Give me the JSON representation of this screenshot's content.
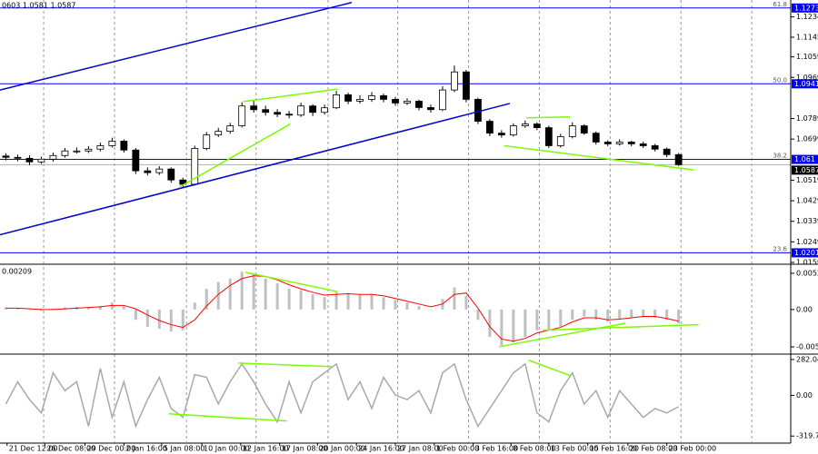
{
  "chart_data": [
    {
      "type": "candlestick",
      "title": "0603 1.0581 1.0587",
      "xlim": [
        0,
        67
      ],
      "ylim": [
        1.0155,
        1.1308
      ],
      "yticks": [
        1.1234,
        1.1145,
        1.1059,
        1.0969,
        1.0789,
        1.0699,
        1.0519,
        1.0429,
        1.0339,
        1.0249,
        1.0159
      ],
      "xticks": [
        {
          "value": 0.6,
          "label": "21 Dec 12:00"
        },
        {
          "value": 3.8,
          "label": "26 Dec 08:00"
        },
        {
          "value": 7.2,
          "label": "29 Dec 00:00"
        },
        {
          "value": 10.5,
          "label": "2 Jan 16:00"
        },
        {
          "value": 13.7,
          "label": "5 Jan 08:00"
        },
        {
          "value": 17.1,
          "label": "10 Jan 00:00"
        },
        {
          "value": 20.4,
          "label": "12 Jan 16:00"
        },
        {
          "value": 23.7,
          "label": "17 Jan 08:00"
        },
        {
          "value": 26.9,
          "label": "20 Jan 00:00"
        },
        {
          "value": 30.2,
          "label": "24 Jan 16:00"
        },
        {
          "value": 33.5,
          "label": "27 Jan 08:00"
        },
        {
          "value": 36.8,
          "label": "1 Feb 00:00"
        },
        {
          "value": 40.1,
          "label": "3 Feb 16:00"
        },
        {
          "value": 43.3,
          "label": "8 Feb 08:00"
        },
        {
          "value": 46.5,
          "label": "13 Feb 00:00"
        },
        {
          "value": 49.8,
          "label": "15 Feb 16:00"
        },
        {
          "value": 53.2,
          "label": "20 Feb 08:00"
        },
        {
          "value": 56.5,
          "label": "23 Feb 00:00"
        }
      ],
      "xgrid": [
        3.7,
        9.7,
        15.8,
        21.7,
        27.8,
        33.7,
        39.7,
        45.7,
        51.7,
        57.7,
        63.7
      ],
      "open": [
        1.0625,
        1.0619,
        1.0615,
        1.0599,
        1.0611,
        1.0627,
        1.0647,
        1.0647,
        1.0655,
        1.067,
        1.069,
        1.0651,
        1.056,
        1.0552,
        1.0568,
        1.052,
        1.0501,
        1.0658,
        1.0717,
        1.0733,
        1.0757,
        1.0844,
        1.0828,
        1.0816,
        1.0808,
        1.0804,
        1.0844,
        1.0816,
        1.0836,
        1.0893,
        1.0865,
        1.0873,
        1.0889,
        1.0873,
        1.0857,
        1.0865,
        1.0837,
        1.0828,
        1.0914,
        1.0993,
        1.0873,
        1.0777,
        1.0725,
        1.0717,
        1.0757,
        1.0765,
        1.0749,
        1.067,
        1.071,
        1.0757,
        1.0725,
        1.0686,
        1.0678,
        1.0686,
        1.0678,
        1.067,
        1.0655,
        1.0631
      ],
      "high": [
        1.0637,
        1.0631,
        1.0628,
        1.0622,
        1.064,
        1.066,
        1.0662,
        1.0668,
        1.0684,
        1.0705,
        1.0698,
        1.066,
        1.0575,
        1.058,
        1.0575,
        1.053,
        1.067,
        1.073,
        1.0748,
        1.077,
        1.086,
        1.0866,
        1.0845,
        1.083,
        1.0822,
        1.0858,
        1.0852,
        1.085,
        1.091,
        1.0902,
        1.089,
        1.0905,
        1.0898,
        1.0884,
        1.0878,
        1.0872,
        1.085,
        1.093,
        1.1021,
        1.1002,
        1.088,
        1.0786,
        1.0738,
        1.0768,
        1.078,
        1.0772,
        1.0758,
        1.0722,
        1.0772,
        1.0764,
        1.0732,
        1.0694,
        1.0698,
        1.0692,
        1.0688,
        1.0678,
        1.0662,
        1.0638
      ],
      "low": [
        1.0606,
        1.0602,
        1.0585,
        1.059,
        1.06,
        1.0618,
        1.0636,
        1.0638,
        1.0645,
        1.0662,
        1.064,
        1.0546,
        1.054,
        1.0542,
        1.0508,
        1.0487,
        1.0495,
        1.065,
        1.0708,
        1.0722,
        1.075,
        1.0815,
        1.0802,
        1.0795,
        1.079,
        1.0796,
        1.08,
        1.0806,
        1.083,
        1.0852,
        1.0855,
        1.0862,
        1.086,
        1.0845,
        1.0848,
        1.0825,
        1.0815,
        1.0822,
        1.0905,
        1.086,
        1.0765,
        1.0712,
        1.0705,
        1.071,
        1.0748,
        1.0738,
        1.066,
        1.0662,
        1.0702,
        1.0718,
        1.0675,
        1.0668,
        1.067,
        1.0668,
        1.066,
        1.0645,
        1.062,
        1.0581
      ],
      "close": [
        1.0619,
        1.0615,
        1.0599,
        1.0611,
        1.0627,
        1.0647,
        1.0647,
        1.0655,
        1.067,
        1.069,
        1.0651,
        1.056,
        1.0552,
        1.0568,
        1.052,
        1.0501,
        1.0658,
        1.0717,
        1.0733,
        1.0757,
        1.0844,
        1.0828,
        1.0816,
        1.0808,
        1.0804,
        1.0844,
        1.0816,
        1.0836,
        1.0893,
        1.0865,
        1.0873,
        1.0889,
        1.0873,
        1.0857,
        1.0865,
        1.0837,
        1.0828,
        1.0914,
        1.0993,
        1.0873,
        1.0777,
        1.0725,
        1.0717,
        1.0757,
        1.0765,
        1.0749,
        1.067,
        1.071,
        1.0757,
        1.0725,
        1.0686,
        1.0678,
        1.0686,
        1.0678,
        1.067,
        1.0655,
        1.0631,
        1.0587
      ],
      "levels": [
        {
          "price": 1.1273,
          "fib": 61.8
        },
        {
          "price": 1.0941,
          "fib": {
            "value": 50,
            "label": "50.0"
          }
        },
        {
          "price": 1.061,
          "fib": 38.2
        },
        {
          "price": 1.0201,
          "fib": 23.6
        }
      ],
      "level_color": "#0000ff",
      "current": 1.0587,
      "lines": [
        {
          "color": "#0000cd",
          "x": [
            0,
            29.8
          ],
          "y": [
            1.0914,
            1.1297
          ]
        },
        {
          "color": "#0000cd",
          "x": [
            0,
            43.2
          ],
          "y": [
            1.028,
            1.0855
          ]
        },
        {
          "color": "#7cfc00",
          "x": [
            15.2,
            24.6
          ],
          "y": [
            1.0489,
            1.0765
          ]
        },
        {
          "color": "#7cfc00",
          "x": [
            20.6,
            28.6
          ],
          "y": [
            1.0863,
            1.0918
          ]
        },
        {
          "color": "#7cfc00",
          "x": [
            44.6,
            48.3
          ],
          "y": [
            1.0792,
            1.0796
          ]
        },
        {
          "color": "#7cfc00",
          "x": [
            42.7,
            58.8
          ],
          "y": [
            1.067,
            1.0564
          ]
        }
      ]
    },
    {
      "type": "macd",
      "title": "0.00209",
      "ylim": [
        -0.00635,
        0.00645
      ],
      "yticks": [
        0.00526,
        {
          "value": 0,
          "label": "0.00"
        },
        -0.00543
      ],
      "histogram": {
        "color": "#c0c0c0",
        "values": [
          0.0003,
          0.0002,
          0,
          -0.0002,
          0.0001,
          0.0003,
          0.0004,
          0.0003,
          0.0005,
          0.001,
          0.0005,
          -0.0015,
          -0.0025,
          -0.0028,
          -0.0032,
          -0.003,
          0.001,
          0.003,
          0.004,
          0.0045,
          0.0055,
          0.0052,
          0.0045,
          0.0038,
          0.003,
          0.0028,
          0.0022,
          0.0018,
          0.0025,
          0.0024,
          0.0022,
          0.0022,
          0.0018,
          0.0014,
          0.001,
          0.0005,
          0,
          0.0015,
          0.0032,
          0.002,
          -0.0015,
          -0.004,
          -0.0052,
          -0.0048,
          -0.004,
          -0.003,
          -0.003,
          -0.0025,
          -0.0015,
          -0.001,
          -0.0015,
          -0.0018,
          -0.0014,
          -0.0012,
          -0.001,
          -0.0012,
          -0.0015,
          -0.002
        ]
      },
      "signal": {
        "color": "#ff0000",
        "values": [
          0.0002,
          0.0002,
          0.0001,
          0,
          0,
          0.0001,
          0.0002,
          0.0003,
          0.0004,
          0.0006,
          0.0006,
          0.0001,
          -0.0008,
          -0.0016,
          -0.0022,
          -0.0026,
          -0.0015,
          0.0005,
          0.0022,
          0.0035,
          0.0045,
          0.0049,
          0.0048,
          0.0043,
          0.0036,
          0.003,
          0.0025,
          0.0021,
          0.0022,
          0.0023,
          0.0022,
          0.0022,
          0.002,
          0.0016,
          0.0012,
          0.0008,
          0.0004,
          0.0008,
          0.0022,
          0.0024,
          0.0002,
          -0.0025,
          -0.0043,
          -0.0046,
          -0.0042,
          -0.0034,
          -0.003,
          -0.0026,
          -0.0018,
          -0.0012,
          -0.0012,
          -0.0015,
          -0.0014,
          -0.0012,
          -0.001,
          -0.001,
          -0.0013,
          -0.0017
        ]
      },
      "lines": [
        {
          "color": "#7cfc00",
          "x": [
            20.8,
            28.6
          ],
          "y": [
            0.0054,
            0.0026
          ]
        },
        {
          "color": "#7cfc00",
          "x": [
            42.3,
            53
          ],
          "y": [
            -0.0054,
            -0.002
          ]
        },
        {
          "color": "#7cfc00",
          "x": [
            46,
            59.2
          ],
          "y": [
            -0.003,
            -0.0022
          ]
        }
      ]
    },
    {
      "type": "line",
      "ylim": [
        -368,
        317
      ],
      "yticks": [
        282.0457,
        {
          "value": 0,
          "label": "0.00"
        },
        {
          "value": -319.753,
          "label": "-319.7530"
        }
      ],
      "color": "#a9a9a9",
      "values": [
        -68,
        107,
        -33,
        -138,
        177,
        37,
        107,
        -243,
        212,
        -173,
        107,
        -243,
        -33,
        142,
        -103,
        -173,
        163,
        142,
        -68,
        107,
        247,
        107,
        -68,
        -208,
        107,
        -138,
        107,
        177,
        247,
        -33,
        107,
        -103,
        142,
        2,
        -33,
        37,
        -138,
        177,
        247,
        -33,
        -243,
        -103,
        37,
        177,
        247,
        -138,
        -208,
        37,
        177,
        -68,
        37,
        -173,
        37,
        -68,
        -173,
        -103,
        -138,
        -89
      ],
      "lines": [
        {
          "color": "#7cfc00",
          "x": [
            20.2,
            28.1
          ],
          "y": [
            254,
            226
          ]
        },
        {
          "color": "#7cfc00",
          "x": [
            14.3,
            24.3
          ],
          "y": [
            -145,
            -201
          ]
        },
        {
          "color": "#7cfc00",
          "x": [
            44.8,
            48.3
          ],
          "y": [
            276,
            156
          ]
        }
      ]
    }
  ]
}
